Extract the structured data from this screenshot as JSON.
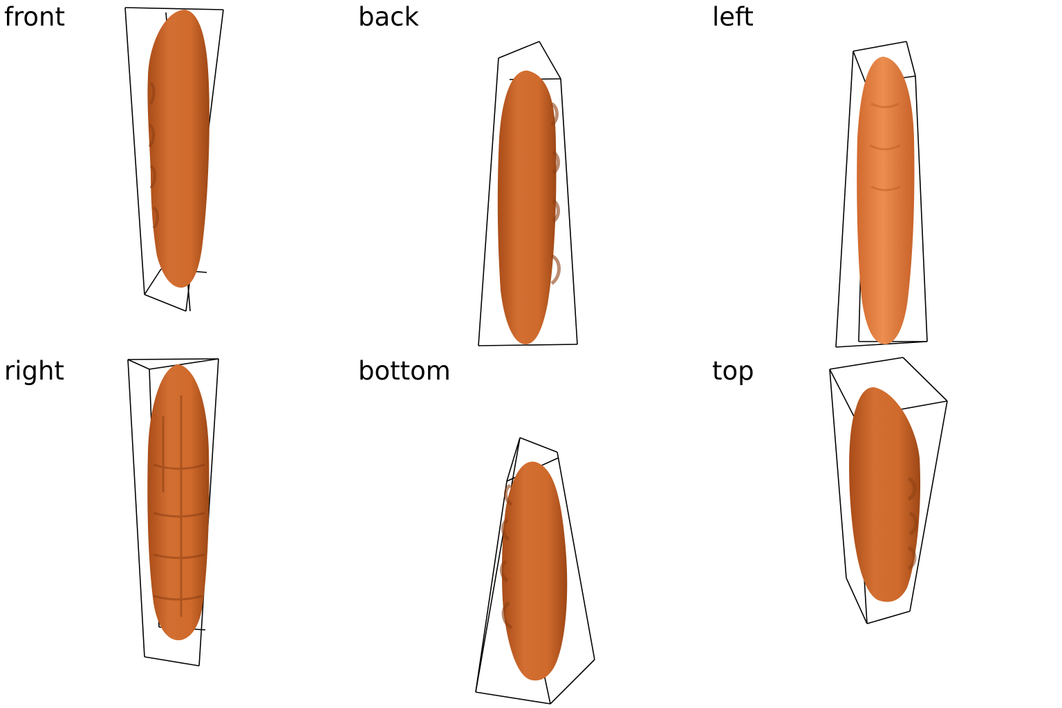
{
  "views": [
    {
      "id": "front",
      "label": "front"
    },
    {
      "id": "back",
      "label": "back"
    },
    {
      "id": "left",
      "label": "left"
    },
    {
      "id": "right",
      "label": "right"
    },
    {
      "id": "bottom",
      "label": "bottom"
    },
    {
      "id": "top",
      "label": "top"
    }
  ],
  "colors": {
    "object_base": "#c8652a",
    "object_light": "#e88a4a",
    "object_dark": "#9a4515",
    "bounding_box": "#000000",
    "background": "#ffffff"
  }
}
